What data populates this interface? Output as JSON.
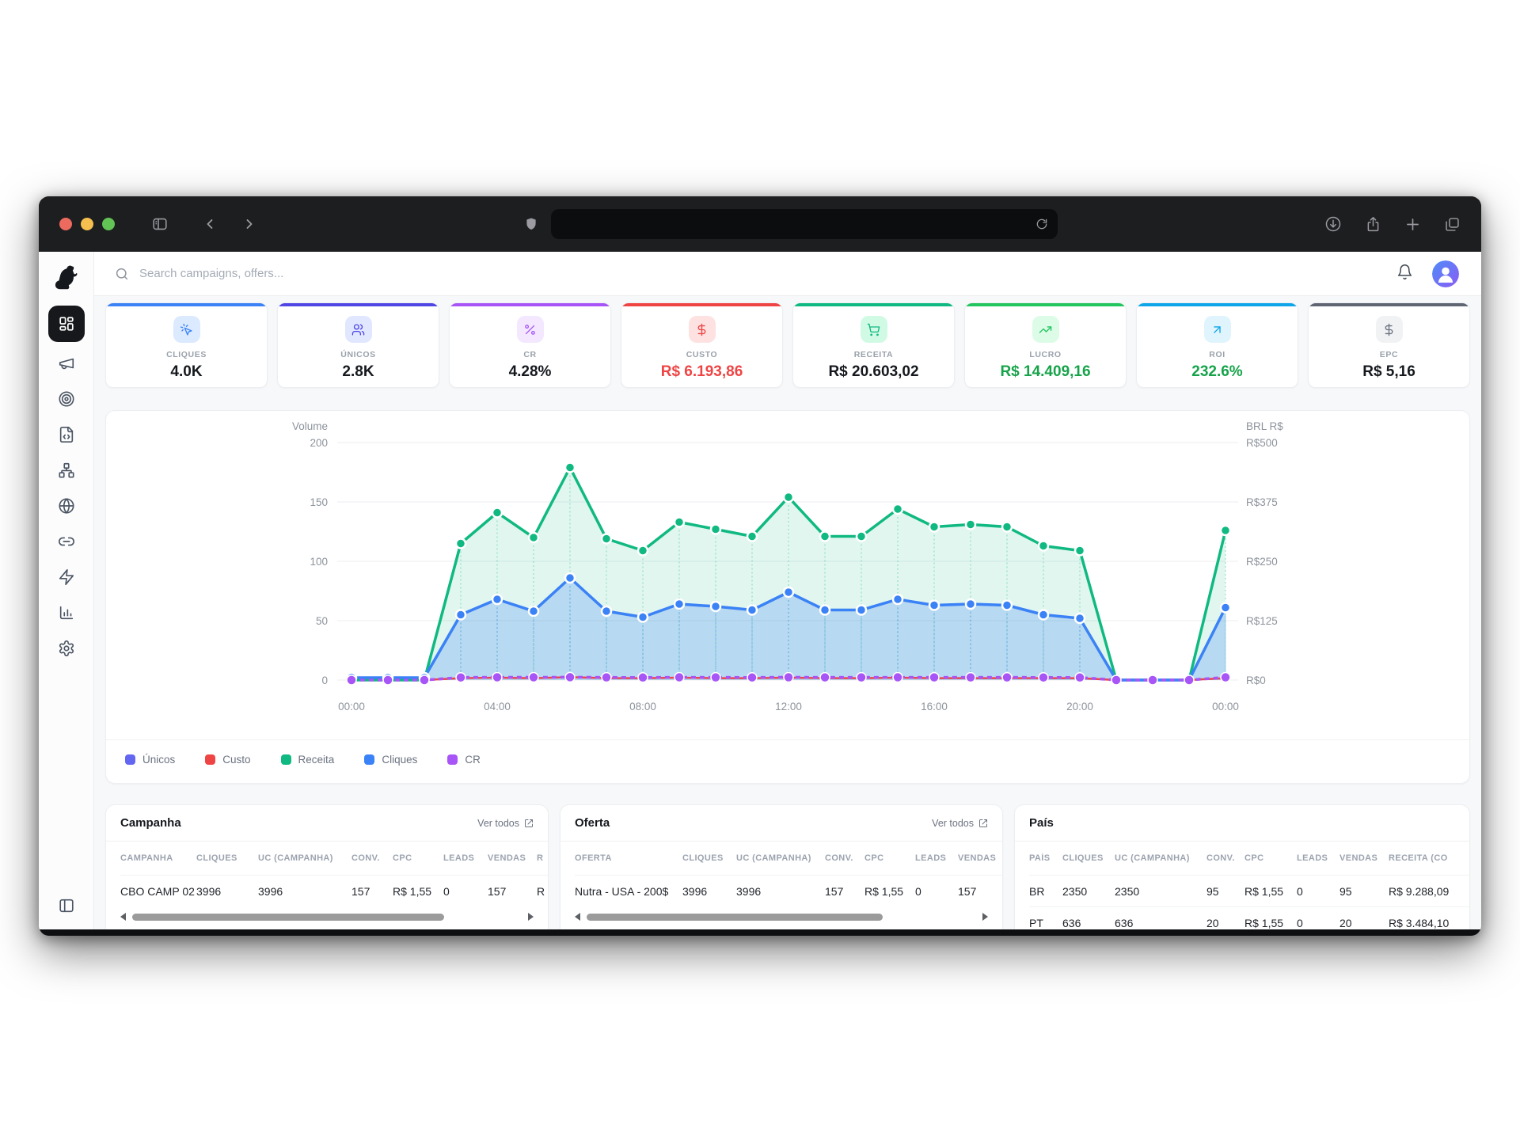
{
  "browser": {
    "url_text": ""
  },
  "app_header": {
    "search_placeholder": "Search campaigns, offers..."
  },
  "sidebar_items": [
    "dashboard",
    "campaigns",
    "offers",
    "landing-pages",
    "flows",
    "domains",
    "links",
    "integrations",
    "reports",
    "settings"
  ],
  "kpis": [
    {
      "label": "CLIQUES",
      "value": "4.0K",
      "accent": "#3b82f6",
      "chip_bg": "#dbeafe",
      "icon_color": "#3b82f6",
      "value_color": "#15181d"
    },
    {
      "label": "ÚNICOS",
      "value": "2.8K",
      "accent": "#4f46e5",
      "chip_bg": "#e0e7ff",
      "icon_color": "#4f46e5",
      "value_color": "#15181d"
    },
    {
      "label": "CR",
      "value": "4.28%",
      "accent": "#a855f7",
      "chip_bg": "#f3e8ff",
      "icon_color": "#a855f7",
      "value_color": "#15181d"
    },
    {
      "label": "CUSTO",
      "value": "R$ 6.193,86",
      "accent": "#ef4444",
      "chip_bg": "#fee2e2",
      "icon_color": "#ef4444",
      "value_color": "#ef4444"
    },
    {
      "label": "RECEITA",
      "value": "R$ 20.603,02",
      "accent": "#10b981",
      "chip_bg": "#d1fae5",
      "icon_color": "#10b981",
      "value_color": "#15181d"
    },
    {
      "label": "LUCRO",
      "value": "R$ 14.409,16",
      "accent": "#22c55e",
      "chip_bg": "#dcfce7",
      "icon_color": "#22c55e",
      "value_color": "#16a34a"
    },
    {
      "label": "ROI",
      "value": "232.6%",
      "accent": "#0ea5e9",
      "chip_bg": "#dff4fd",
      "icon_color": "#0ea5e9",
      "value_color": "#16a34a"
    },
    {
      "label": "EPC",
      "value": "R$ 5,16",
      "accent": "#5f6672",
      "chip_bg": "#f1f2f4",
      "icon_color": "#6b7280",
      "value_color": "#15181d"
    }
  ],
  "chart_data": {
    "type": "line",
    "left_axis": {
      "title": "Volume",
      "ticks": [
        0,
        50,
        100,
        150,
        200
      ],
      "range": [
        0,
        200
      ]
    },
    "right_axis": {
      "title": "BRL R$",
      "tick_labels": [
        "R$0",
        "R$125",
        "R$250",
        "R$375",
        "R$500"
      ],
      "tick_values": [
        0,
        125,
        250,
        375,
        500
      ],
      "range": [
        0,
        500
      ]
    },
    "x_tick_labels": [
      "00:00",
      "04:00",
      "08:00",
      "12:00",
      "16:00",
      "20:00",
      "00:00"
    ],
    "x_tick_indices": [
      0,
      4,
      8,
      12,
      16,
      20,
      24
    ],
    "grid": true,
    "legend_position": "bottom-left",
    "series": [
      {
        "name": "Únicos",
        "color": "#6366f1",
        "axis": "volume",
        "values": [
          2,
          2,
          2,
          55,
          68,
          58,
          86,
          58,
          53,
          64,
          62,
          59,
          74,
          59,
          59,
          68,
          63,
          64,
          63,
          55,
          52,
          0,
          0,
          0,
          61
        ]
      },
      {
        "name": "Custo",
        "color": "#ef4444",
        "axis": "brl",
        "values": [
          0,
          0,
          0,
          4,
          5,
          4,
          6,
          4,
          4,
          5,
          4,
          4,
          5,
          4,
          4,
          5,
          4,
          4,
          4,
          4,
          4,
          0,
          0,
          0,
          4
        ]
      },
      {
        "name": "Receita",
        "color": "#10b981",
        "axis": "volume",
        "values": [
          0,
          0,
          0,
          115,
          141,
          120,
          179,
          119,
          109,
          133,
          127,
          121,
          154,
          121,
          121,
          144,
          129,
          131,
          129,
          113,
          109,
          0,
          0,
          0,
          126
        ]
      },
      {
        "name": "Cliques",
        "color": "#3b82f6",
        "axis": "volume",
        "values": [
          2,
          2,
          2,
          55,
          68,
          58,
          86,
          58,
          53,
          64,
          62,
          59,
          74,
          59,
          59,
          68,
          63,
          64,
          63,
          55,
          52,
          0,
          0,
          0,
          61
        ]
      },
      {
        "name": "CR",
        "color": "#a855f7",
        "axis": "percent",
        "values": [
          0,
          0,
          0,
          4.1,
          4.4,
          4.3,
          4.5,
          4.2,
          4.0,
          4.3,
          4.2,
          4.1,
          4.4,
          4.2,
          4.2,
          4.3,
          4.2,
          4.2,
          4.2,
          4.1,
          4.0,
          0,
          0,
          0,
          4.3
        ]
      }
    ]
  },
  "tables": {
    "campanha": {
      "title": "Campanha",
      "link": "Ver todos",
      "headers": [
        "CAMPANHA",
        "CLIQUES",
        "UC (CAMPANHA)",
        "CONV.",
        "CPC",
        "LEADS",
        "VENDAS",
        "R"
      ],
      "rows": [
        [
          "CBO CAMP 02",
          "3996",
          "3996",
          "157",
          "R$ 1,55",
          "0",
          "157",
          "R"
        ]
      ]
    },
    "oferta": {
      "title": "Oferta",
      "link": "Ver todos",
      "headers": [
        "OFERTA",
        "CLIQUES",
        "UC (CAMPANHA)",
        "CONV.",
        "CPC",
        "LEADS",
        "VENDAS"
      ],
      "rows": [
        [
          "Nutra - USA - 200$",
          "3996",
          "3996",
          "157",
          "R$ 1,55",
          "0",
          "157"
        ]
      ]
    },
    "pais": {
      "title": "País",
      "headers": [
        "PAÍS",
        "CLIQUES",
        "UC (CAMPANHA)",
        "CONV.",
        "CPC",
        "LEADS",
        "VENDAS",
        "RECEITA (CO"
      ],
      "rows": [
        [
          "BR",
          "2350",
          "2350",
          "95",
          "R$ 1,55",
          "0",
          "95",
          "R$ 9.288,09"
        ],
        [
          "PT",
          "636",
          "636",
          "20",
          "R$ 1,55",
          "0",
          "20",
          "R$ 3.484,10"
        ]
      ]
    }
  }
}
